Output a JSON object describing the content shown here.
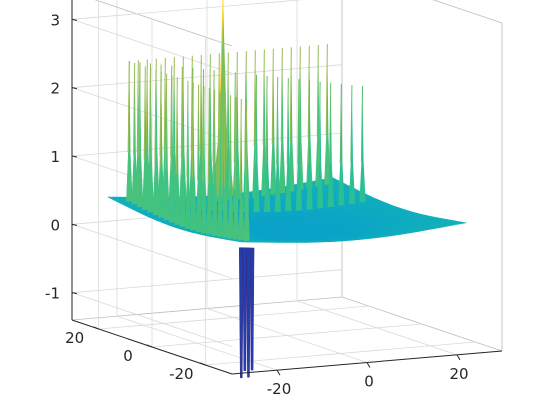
{
  "chart_data": {
    "type": "surface3d",
    "colormap": "parula",
    "grid": true,
    "xlim": [
      -30,
      30
    ],
    "ylim": [
      -30,
      30
    ],
    "zlim": [
      -1.4,
      3.4
    ],
    "x_ticks": [
      {
        "value": -20,
        "label": "-20"
      },
      {
        "value": 0,
        "label": "0"
      },
      {
        "value": 20,
        "label": "20"
      }
    ],
    "y_ticks": [
      {
        "value": 20,
        "label": "20"
      },
      {
        "value": 0,
        "label": "0"
      },
      {
        "value": -20,
        "label": "-20"
      }
    ],
    "z_ticks": [
      {
        "value": 3,
        "label": "3"
      },
      {
        "value": 2,
        "label": "2"
      },
      {
        "value": 1,
        "label": "1"
      },
      {
        "value": 0,
        "label": "0"
      },
      {
        "value": -1,
        "label": "-1"
      }
    ],
    "surface": {
      "base_level": 0.55,
      "center_value": 0.1,
      "spike_rows": {
        "x_values": [
          -22,
          -20,
          -18,
          -16,
          -14,
          -12,
          -10,
          -8,
          -6,
          -4,
          -2,
          0,
          2,
          4,
          6,
          8,
          10,
          12,
          14,
          16,
          18,
          20,
          22
        ],
        "y_values": [
          -22,
          -20,
          -18,
          -16,
          -14,
          -12,
          -10,
          -8,
          -6,
          -4,
          -2,
          0,
          2,
          4,
          6,
          8,
          10,
          12,
          14,
          16,
          18,
          20,
          22
        ],
        "peak_value": 2.45,
        "main_peak": {
          "x": 0,
          "y": 0,
          "value": 3.2
        },
        "main_trough": {
          "x": -22,
          "y": -22,
          "value": -1.6
        }
      }
    },
    "colors": {
      "low": "#352a87",
      "mid": "#14b5b5",
      "high": "#f9fb0e"
    }
  }
}
